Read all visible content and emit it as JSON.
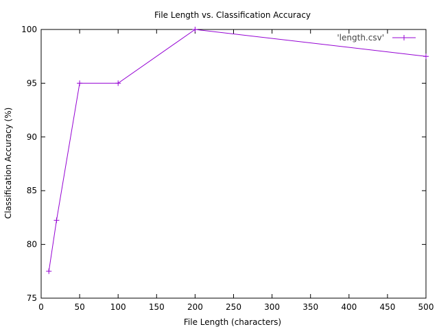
{
  "chart_data": {
    "type": "line",
    "title": "File Length vs. Classification Accuracy",
    "xlabel": "File Length (characters)",
    "ylabel": "Classification Accuracy (%)",
    "xlim": [
      0,
      500
    ],
    "ylim": [
      75,
      100
    ],
    "xticks": [
      0,
      50,
      100,
      150,
      200,
      250,
      300,
      350,
      400,
      450,
      500
    ],
    "yticks": [
      75,
      80,
      85,
      90,
      95,
      100
    ],
    "grid": false,
    "legend_position": "top-right",
    "series": [
      {
        "name": "'length.csv'",
        "color": "#9400d3",
        "marker": "plus",
        "x": [
          10,
          20,
          50,
          100,
          200,
          500
        ],
        "y": [
          77.5,
          82.25,
          95,
          95,
          100,
          97.5
        ]
      }
    ]
  }
}
